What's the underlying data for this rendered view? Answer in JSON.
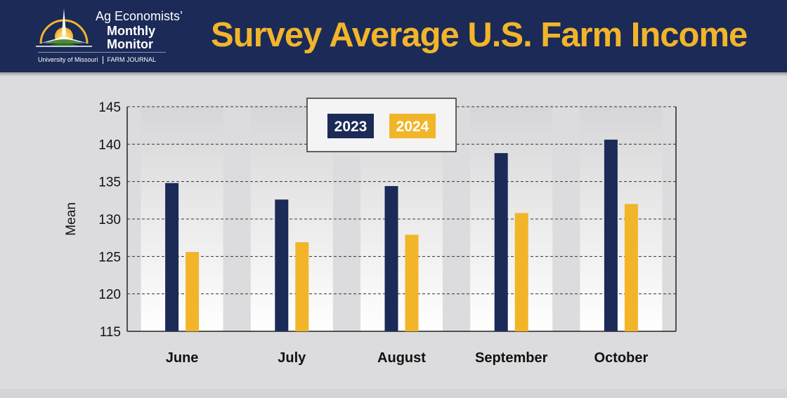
{
  "header": {
    "title": "Survey Average U.S. Farm Income",
    "logo": {
      "line1": "Ag Economists’",
      "line2": "Monthly",
      "line3": "Monitor",
      "university": "University of Missouri",
      "partner": "FARM JOURNAL",
      "icon": "sunrise-compass-icon"
    }
  },
  "colors": {
    "navy": "#1b2a57",
    "gold": "#f2b52a",
    "background": "#dcdcde"
  },
  "chart_data": {
    "type": "bar",
    "title": "",
    "xlabel": "",
    "ylabel": "Mean",
    "ylim": [
      115,
      145
    ],
    "yticks": [
      115,
      120,
      125,
      130,
      135,
      140,
      145
    ],
    "grid": true,
    "legend_position": "top-center",
    "categories": [
      "June",
      "July",
      "August",
      "September",
      "October"
    ],
    "series": [
      {
        "name": "2023",
        "color": "#1b2a57",
        "values": [
          134.8,
          132.6,
          134.4,
          138.8,
          140.6
        ]
      },
      {
        "name": "2024",
        "color": "#f2b52a",
        "values": [
          125.6,
          126.9,
          127.9,
          130.8,
          132.0
        ]
      }
    ]
  }
}
